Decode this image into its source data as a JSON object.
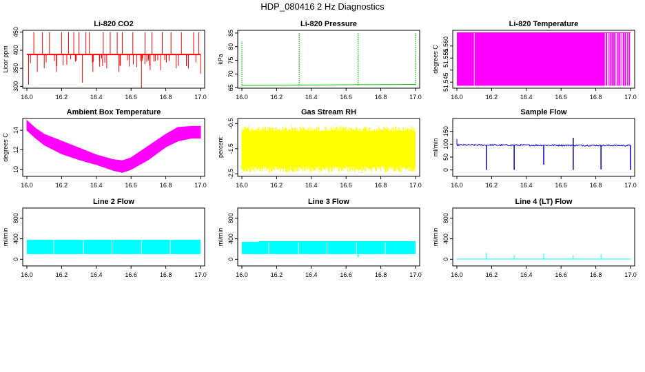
{
  "figure": {
    "title": "HDP_080416  2 Hz Diagnostics"
  },
  "chart_data": [
    {
      "id": "co2",
      "type": "line",
      "title": "Li-820 CO2",
      "ylabel": "Licor ppm",
      "xlim": [
        16.0,
        17.0
      ],
      "ylim": [
        295,
        455
      ],
      "color": "#ff0000",
      "xticks": [
        "16.0",
        "16.2",
        "16.4",
        "16.6",
        "16.8",
        "17.0"
      ],
      "yticks": [
        {
          "v": 300,
          "label": "300"
        },
        {
          "v": 350,
          "label": "350"
        },
        {
          "v": 400,
          "label": "400"
        },
        {
          "v": 450,
          "label": "450"
        }
      ],
      "baseline": 388,
      "spikes_up": [
        16.04,
        16.09,
        16.13,
        16.2,
        16.24,
        16.27,
        16.3,
        16.34,
        16.36,
        16.44,
        16.48,
        16.52,
        16.55,
        16.61,
        16.68,
        16.72,
        16.78,
        16.83,
        16.89,
        16.96,
        16.99
      ],
      "spikes_up_top": 450,
      "dips": [
        [
          16.01,
          305
        ],
        [
          16.06,
          340
        ],
        [
          16.1,
          350
        ],
        [
          16.17,
          340
        ],
        [
          16.23,
          360
        ],
        [
          16.28,
          370
        ],
        [
          16.32,
          310
        ],
        [
          16.38,
          340
        ],
        [
          16.46,
          350
        ],
        [
          16.53,
          340
        ],
        [
          16.59,
          355
        ],
        [
          16.66,
          296
        ],
        [
          16.71,
          345
        ],
        [
          16.77,
          345
        ],
        [
          16.86,
          350
        ],
        [
          16.93,
          350
        ],
        [
          17.0,
          335
        ]
      ]
    },
    {
      "id": "pressure",
      "type": "line",
      "title": "Li-820 Pressure",
      "ylabel": "kPa",
      "xlim": [
        16.0,
        17.0
      ],
      "ylim": [
        64.8,
        86
      ],
      "color": "#00bb00",
      "xticks": [
        "16.0",
        "16.2",
        "16.4",
        "16.6",
        "16.8",
        "17.0"
      ],
      "yticks": [
        {
          "v": 65,
          "label": "65"
        },
        {
          "v": 70,
          "label": "70"
        },
        {
          "v": 75,
          "label": "75"
        },
        {
          "v": 80,
          "label": "80"
        },
        {
          "v": 85,
          "label": "85"
        }
      ],
      "baseline": 65.8,
      "spikes": [
        [
          16.0,
          82
        ],
        [
          16.33,
          85
        ],
        [
          16.67,
          85
        ],
        [
          17.0,
          85
        ]
      ]
    },
    {
      "id": "licor_temp",
      "type": "area",
      "title": "Li-820 Temperature",
      "ylabel": "degrees C",
      "xlim": [
        16.0,
        17.0
      ],
      "ylim": [
        51.5425,
        51.5665
      ],
      "color": "#ff00ff",
      "xticks": [
        "16.0",
        "16.2",
        "16.4",
        "16.6",
        "16.8",
        "17.0"
      ],
      "yticks": [
        {
          "v": 51.545,
          "label": "51.545"
        },
        {
          "v": 51.55,
          "label": ""
        },
        {
          "v": 51.555,
          "label": "51.555"
        },
        {
          "v": 51.56,
          "label": "51.560"
        }
      ],
      "fill_range": [
        51.5435,
        51.5655
      ],
      "fill_end": 16.85
    },
    {
      "id": "box_temp",
      "type": "area",
      "title": "Ambient Box Temperature",
      "ylabel": "degrees C",
      "xlim": [
        16.0,
        17.0
      ],
      "ylim": [
        9.3,
        15.2
      ],
      "color": "#ff00ff",
      "xticks": [
        "16.0",
        "16.2",
        "16.4",
        "16.6",
        "16.8",
        "17.0"
      ],
      "yticks": [
        {
          "v": 10,
          "label": "10"
        },
        {
          "v": 12,
          "label": "12"
        },
        {
          "v": 14,
          "label": "14"
        }
      ],
      "upper": [
        [
          16.0,
          15.0
        ],
        [
          16.05,
          14.2
        ],
        [
          16.1,
          13.6
        ],
        [
          16.2,
          12.9
        ],
        [
          16.3,
          12.2
        ],
        [
          16.4,
          11.5
        ],
        [
          16.5,
          11.0
        ],
        [
          16.55,
          10.9
        ],
        [
          16.6,
          11.2
        ],
        [
          16.7,
          12.4
        ],
        [
          16.8,
          13.6
        ],
        [
          16.87,
          14.3
        ],
        [
          16.95,
          14.4
        ],
        [
          17.0,
          14.4
        ]
      ],
      "lower": [
        [
          16.0,
          14.0
        ],
        [
          16.05,
          13.2
        ],
        [
          16.1,
          12.5
        ],
        [
          16.2,
          11.6
        ],
        [
          16.3,
          11.0
        ],
        [
          16.4,
          10.5
        ],
        [
          16.5,
          9.9
        ],
        [
          16.55,
          9.7
        ],
        [
          16.6,
          10.0
        ],
        [
          16.7,
          11.0
        ],
        [
          16.8,
          12.3
        ],
        [
          16.87,
          12.9
        ],
        [
          16.95,
          13.2
        ],
        [
          17.0,
          13.2
        ]
      ]
    },
    {
      "id": "rh",
      "type": "area",
      "title": "Gas Stream RH",
      "ylabel": "percent",
      "xlim": [
        16.0,
        17.0
      ],
      "ylim": [
        -2.6,
        -0.3
      ],
      "color": "#ffff00",
      "xticks": [
        "16.0",
        "16.2",
        "16.4",
        "16.6",
        "16.8",
        "17.0"
      ],
      "yticks": [
        {
          "v": -2.5,
          "label": "-2.5"
        },
        {
          "v": -1.5,
          "label": "-1.5"
        },
        {
          "v": -0.5,
          "label": "-0.5"
        }
      ],
      "band": [
        -2.4,
        -0.6
      ]
    },
    {
      "id": "sample_flow",
      "type": "line",
      "title": "Sample Flow",
      "ylabel": "ml/min",
      "xlim": [
        16.0,
        17.0
      ],
      "ylim": [
        -25,
        200
      ],
      "color": "#0000cc",
      "xticks": [
        "16.0",
        "16.2",
        "16.4",
        "16.6",
        "16.8",
        "17.0"
      ],
      "yticks": [
        {
          "v": 0,
          "label": "0"
        },
        {
          "v": 50,
          "label": "50"
        },
        {
          "v": 100,
          "label": "100"
        },
        {
          "v": 150,
          "label": "150"
        }
      ],
      "baseline": 97,
      "dips": [
        [
          16.17,
          0
        ],
        [
          16.33,
          0
        ],
        [
          16.5,
          20
        ],
        [
          16.67,
          0
        ],
        [
          16.83,
          2
        ],
        [
          17.0,
          0
        ]
      ]
    },
    {
      "id": "line2",
      "type": "area",
      "title": "Line 2 Flow",
      "ylabel": "ml/min",
      "xlim": [
        16.0,
        17.0
      ],
      "ylim": [
        -130,
        1000
      ],
      "color": "#00ffff",
      "xticks": [
        "16.0",
        "16.2",
        "16.4",
        "16.6",
        "16.8",
        "17.0"
      ],
      "yticks": [
        {
          "v": 0,
          "label": "0"
        },
        {
          "v": 400,
          "label": "400"
        },
        {
          "v": 800,
          "label": "800"
        }
      ],
      "band": [
        100,
        380
      ],
      "gaps": [
        16.155,
        16.325,
        16.49,
        16.66,
        16.825
      ]
    },
    {
      "id": "line3",
      "type": "area",
      "title": "Line 3 Flow",
      "ylabel": "ml/min",
      "xlim": [
        16.0,
        17.0
      ],
      "ylim": [
        -130,
        1000
      ],
      "color": "#00ffff",
      "xticks": [
        "16.0",
        "16.2",
        "16.4",
        "16.6",
        "16.8",
        "17.0"
      ],
      "yticks": [
        {
          "v": 0,
          "label": "0"
        },
        {
          "v": 400,
          "label": "400"
        },
        {
          "v": 800,
          "label": "800"
        }
      ],
      "band": [
        100,
        340
      ],
      "gaps": [
        16.155,
        16.325,
        16.49,
        16.66,
        16.825
      ]
    },
    {
      "id": "line4",
      "type": "line",
      "title": "Line 4 (LT) Flow",
      "ylabel": "ml/min",
      "xlim": [
        16.0,
        17.0
      ],
      "ylim": [
        -130,
        1000
      ],
      "color": "#00ffff",
      "xticks": [
        "16.0",
        "16.2",
        "16.4",
        "16.6",
        "16.8",
        "17.0"
      ],
      "yticks": [
        {
          "v": 0,
          "label": "0"
        },
        {
          "v": 400,
          "label": "400"
        },
        {
          "v": 800,
          "label": "800"
        }
      ],
      "baseline": 5,
      "spikes": [
        [
          16.17,
          120
        ],
        [
          16.33,
          80
        ],
        [
          16.5,
          110
        ],
        [
          16.67,
          80
        ],
        [
          16.83,
          100
        ],
        [
          17.0,
          0
        ]
      ]
    }
  ]
}
